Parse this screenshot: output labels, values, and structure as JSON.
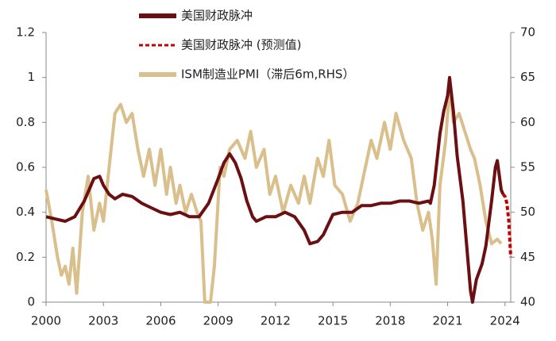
{
  "chart_data": {
    "type": "line",
    "xlim": [
      2000,
      2024.3
    ],
    "xticks": [
      2000,
      2003,
      2006,
      2009,
      2012,
      2015,
      2018,
      2021,
      2024
    ],
    "ylim": [
      0,
      1.2
    ],
    "yticks": [
      0,
      0.2,
      0.4,
      0.6,
      0.8,
      1,
      1.2
    ],
    "y2lim": [
      40,
      70
    ],
    "y2ticks": [
      40,
      45,
      50,
      55,
      60,
      65,
      70
    ],
    "series": [
      {
        "name": "美国财政脉冲",
        "color": "#6b0f12",
        "dashed": false,
        "x": [
          2000,
          2000.5,
          2001,
          2001.5,
          2002,
          2002.5,
          2002.8,
          2003,
          2003.3,
          2003.6,
          2004,
          2004.5,
          2005,
          2005.5,
          2006,
          2006.5,
          2007,
          2007.5,
          2008,
          2008.5,
          2009,
          2009.3,
          2009.6,
          2009.9,
          2010.2,
          2010.5,
          2010.8,
          2011,
          2011.5,
          2012,
          2012.5,
          2013,
          2013.5,
          2013.8,
          2014.2,
          2014.5,
          2015,
          2015.5,
          2016,
          2016.5,
          2017,
          2017.5,
          2018,
          2018.5,
          2019,
          2019.5,
          2020,
          2020.1,
          2020.3,
          2020.6,
          2020.8,
          2021,
          2021.1,
          2021.3,
          2021.5,
          2021.8,
          2022,
          2022.2,
          2022.3,
          2022.5,
          2022.8,
          2023,
          2023.3,
          2023.5,
          2023.6,
          2023.8,
          2023.9
        ],
        "values": [
          0.38,
          0.37,
          0.36,
          0.38,
          0.45,
          0.55,
          0.56,
          0.52,
          0.48,
          0.46,
          0.48,
          0.47,
          0.44,
          0.42,
          0.4,
          0.39,
          0.4,
          0.38,
          0.38,
          0.44,
          0.55,
          0.62,
          0.66,
          0.62,
          0.55,
          0.45,
          0.38,
          0.36,
          0.38,
          0.38,
          0.4,
          0.38,
          0.32,
          0.26,
          0.27,
          0.3,
          0.39,
          0.4,
          0.4,
          0.43,
          0.43,
          0.44,
          0.44,
          0.45,
          0.45,
          0.44,
          0.45,
          0.44,
          0.52,
          0.75,
          0.85,
          0.92,
          1.0,
          0.85,
          0.65,
          0.45,
          0.25,
          0.05,
          0.0,
          0.1,
          0.17,
          0.25,
          0.45,
          0.6,
          0.63,
          0.5,
          0.48
        ]
      },
      {
        "name": "美国财政脉冲 (预测值)",
        "color": "#c00000",
        "dashed": true,
        "x": [
          2023.9,
          2024.0,
          2024.1,
          2024.2,
          2024.3
        ],
        "values": [
          0.48,
          0.47,
          0.44,
          0.36,
          0.2
        ]
      },
      {
        "name": "ISM制造业PMI（滞后6m,RHS）",
        "color": "#d9bf8c",
        "dashed": false,
        "axis": "y2",
        "x": [
          2000,
          2000.3,
          2000.6,
          2000.8,
          2001,
          2001.2,
          2001.4,
          2001.6,
          2001.9,
          2002.2,
          2002.5,
          2002.8,
          2003,
          2003.3,
          2003.6,
          2003.9,
          2004.2,
          2004.5,
          2004.8,
          2005.1,
          2005.4,
          2005.7,
          2006,
          2006.3,
          2006.5,
          2006.8,
          2007,
          2007.3,
          2007.6,
          2007.9,
          2008.1,
          2008.3,
          2008.6,
          2008.8,
          2009.1,
          2009.3,
          2009.6,
          2010,
          2010.4,
          2010.7,
          2011,
          2011.4,
          2011.7,
          2012,
          2012.4,
          2012.8,
          2013.2,
          2013.5,
          2013.8,
          2014.2,
          2014.5,
          2014.8,
          2015.1,
          2015.5,
          2015.9,
          2016.3,
          2016.7,
          2017,
          2017.3,
          2017.7,
          2018,
          2018.3,
          2018.7,
          2019.1,
          2019.4,
          2019.7,
          2020,
          2020.2,
          2020.4,
          2020.6,
          2020.9,
          2021.1,
          2021.3,
          2021.6,
          2021.9,
          2022.2,
          2022.4,
          2022.7,
          2023,
          2023.3,
          2023.6,
          2023.8
        ],
        "values": [
          52.5,
          49,
          45,
          43,
          44,
          42,
          46,
          41,
          50,
          54,
          48,
          51,
          49,
          55,
          61,
          62,
          60,
          61,
          57,
          54,
          57,
          53,
          57,
          52,
          55,
          51,
          53,
          50,
          52,
          50,
          49,
          40,
          40,
          44,
          55,
          54,
          57,
          58,
          56,
          59,
          55,
          57,
          52,
          54,
          50,
          53,
          51,
          54,
          51,
          56,
          54,
          58,
          53,
          52,
          49,
          51,
          55,
          58,
          56,
          60,
          57,
          61,
          58,
          56,
          51,
          48,
          50,
          47,
          42,
          53,
          58,
          64,
          60,
          61,
          59,
          57,
          56,
          53,
          49,
          46.5,
          47,
          46.5
        ]
      }
    ]
  }
}
